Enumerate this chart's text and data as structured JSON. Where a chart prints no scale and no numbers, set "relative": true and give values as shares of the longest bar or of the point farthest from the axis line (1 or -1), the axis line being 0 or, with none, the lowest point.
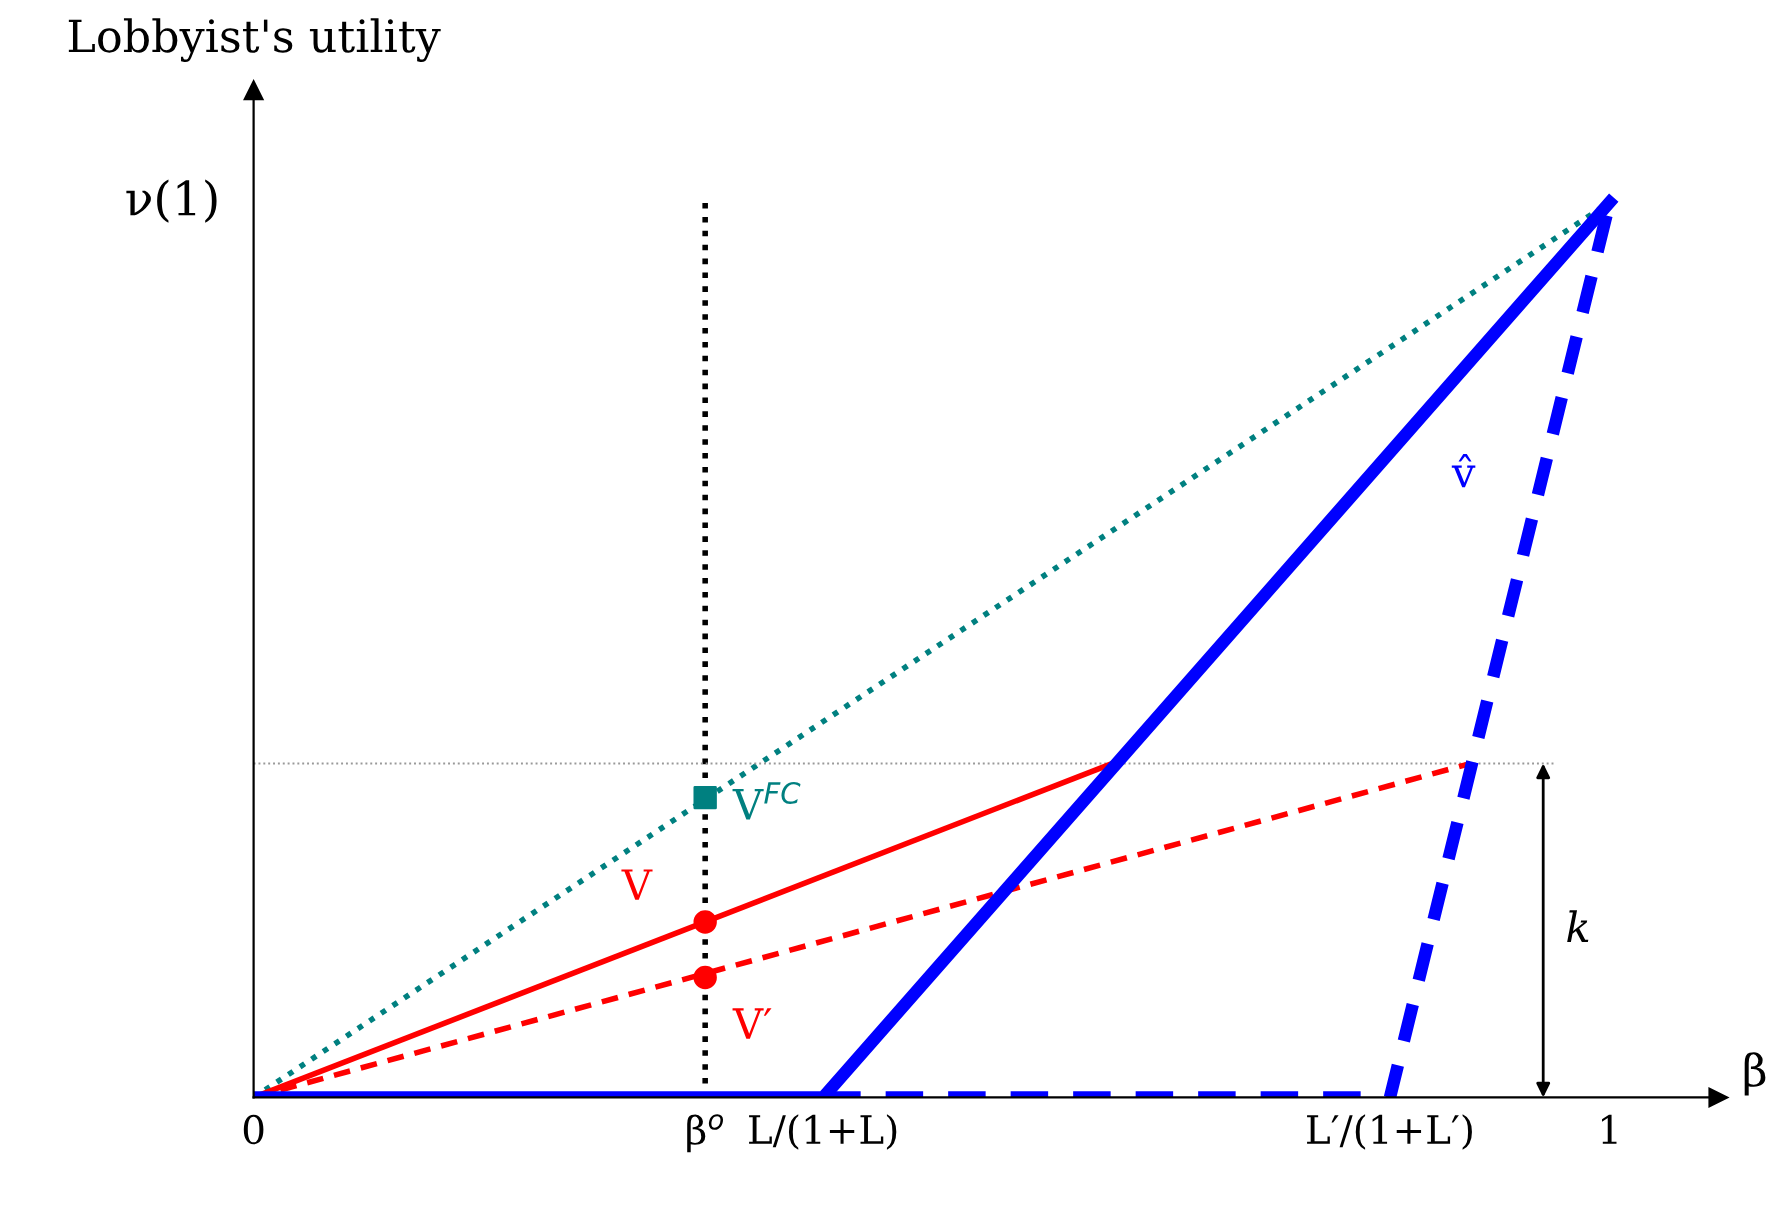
{
  "chart_data": {
    "type": "line",
    "relative": true,
    "ylabel": "Lobbyist's utility",
    "xlabel": "β",
    "xlim": [
      0,
      1.08
    ],
    "xticks": [
      0,
      {
        "value": 0.333,
        "label": "β$^{o}$"
      },
      {
        "value": 0.42,
        "label": "L/(1+L)"
      },
      {
        "value": 0.838,
        "label": "L′/(1+L′)"
      },
      1
    ],
    "series": [
      {
        "x": [
          0,
          1
        ],
        "values": [
          0,
          1
        ],
        "color": "#008080",
        "line_style": "dotted"
      },
      {
        "x": [
          0.333,
          0.333
        ],
        "values": [
          0,
          1
        ],
        "color": "#000000",
        "line_style": "dotted"
      },
      {
        "x": [
          0,
          0.959
        ],
        "values": [
          0.373,
          0.373
        ],
        "color": "#999999",
        "line_style": "dotted"
      },
      {
        "x": [
          0,
          0.633
        ],
        "values": [
          0,
          0.373
        ],
        "color": "#ff0000",
        "line_style": "solid"
      },
      {
        "x": [
          0,
          0.897
        ],
        "values": [
          0,
          0.373
        ],
        "color": "#ff0000",
        "line_style": "dashed"
      },
      {
        "x": [
          0.42,
          0.838,
          1
        ],
        "values": [
          0,
          0,
          1
        ],
        "color": "#0000ff",
        "line_style": "dashed"
      },
      {
        "name": "v̂",
        "x": [
          0,
          0.42,
          1
        ],
        "values": [
          0,
          0,
          1
        ],
        "color": "#0000ff",
        "line_style": "solid"
      },
      {
        "name": "V$^{FC}$",
        "type": "scatter",
        "marker": "square",
        "x": [
          0.333
        ],
        "values": [
          0.335
        ],
        "color": "#008080"
      },
      {
        "name": "V",
        "type": "scatter",
        "marker": "circle",
        "x": [
          0.333
        ],
        "values": [
          0.196
        ],
        "color": "#ff0000"
      },
      {
        "name": "V′",
        "type": "scatter",
        "marker": "circle",
        "x": [
          0.333
        ],
        "values": [
          0.134
        ],
        "color": "#ff0000"
      }
    ],
    "annotations": [
      "ν(1)",
      "k"
    ],
    "grid": false
  }
}
